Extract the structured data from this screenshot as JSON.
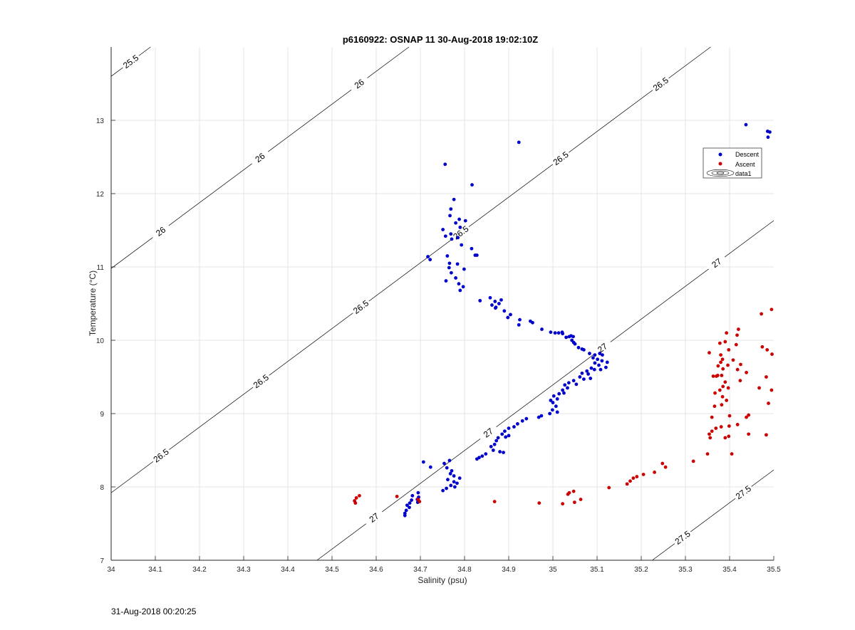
{
  "chart_data": {
    "type": "scatter",
    "title": "p6160922: OSNAP 11 30-Aug-2018 19:02:10Z",
    "xlabel": "Salinity (psu)",
    "ylabel": "Temperature (°C)",
    "xlim": [
      34,
      35.5
    ],
    "ylim": [
      7,
      14
    ],
    "xticks": [
      "34",
      "34.1",
      "34.2",
      "34.3",
      "34.4",
      "34.5",
      "34.6",
      "34.7",
      "34.8",
      "34.9",
      "35",
      "35.1",
      "35.2",
      "35.3",
      "35.4",
      "35.5"
    ],
    "yticks": [
      "7",
      "8",
      "9",
      "10",
      "11",
      "12",
      "13"
    ],
    "grid": true,
    "legend_position": "right",
    "legend": [
      {
        "label": "Descent",
        "color": "#0000cc"
      },
      {
        "label": "Ascent",
        "color": "#cc0000"
      },
      {
        "label": "data1",
        "symbol": "contour"
      }
    ],
    "isopycnals": [
      {
        "value": 25.5,
        "labels": [
          "25.5"
        ]
      },
      {
        "value": 26,
        "labels": [
          "26",
          "26",
          "26"
        ]
      },
      {
        "value": 26.5,
        "labels": [
          "26.5",
          "26.5",
          "26.5",
          "26.5",
          "26.5",
          "26.5"
        ]
      },
      {
        "value": 27,
        "labels": [
          "27",
          "27",
          "27",
          "27"
        ]
      },
      {
        "value": 27.5,
        "labels": [
          "27.5",
          "27.5"
        ]
      }
    ],
    "series": [
      {
        "name": "Descent",
        "color": "#0000cc",
        "points": [
          [
            34.923,
            12.7
          ],
          [
            35.437,
            12.94
          ],
          [
            35.486,
            12.85
          ],
          [
            35.491,
            12.84
          ],
          [
            35.487,
            12.77
          ],
          [
            34.756,
            12.4
          ],
          [
            34.817,
            12.12
          ],
          [
            34.776,
            11.92
          ],
          [
            34.769,
            11.79
          ],
          [
            34.767,
            11.7
          ],
          [
            34.788,
            11.65
          ],
          [
            34.802,
            11.63
          ],
          [
            34.79,
            11.54
          ],
          [
            34.78,
            11.6
          ],
          [
            34.751,
            11.51
          ],
          [
            34.769,
            11.45
          ],
          [
            34.757,
            11.42
          ],
          [
            34.771,
            11.38
          ],
          [
            34.785,
            11.4
          ],
          [
            34.793,
            11.3
          ],
          [
            34.816,
            11.25
          ],
          [
            34.824,
            11.16
          ],
          [
            34.828,
            11.16
          ],
          [
            34.717,
            11.14
          ],
          [
            34.722,
            11.1
          ],
          [
            34.761,
            11.15
          ],
          [
            34.766,
            11.05
          ],
          [
            34.784,
            11.04
          ],
          [
            34.765,
            10.99
          ],
          [
            34.799,
            10.97
          ],
          [
            34.77,
            10.92
          ],
          [
            34.78,
            10.85
          ],
          [
            34.758,
            10.81
          ],
          [
            34.787,
            10.77
          ],
          [
            34.79,
            10.68
          ],
          [
            34.797,
            10.73
          ],
          [
            34.835,
            10.54
          ],
          [
            34.858,
            10.58
          ],
          [
            34.862,
            10.48
          ],
          [
            34.869,
            10.53
          ],
          [
            34.871,
            10.45
          ],
          [
            34.878,
            10.5
          ],
          [
            34.883,
            10.55
          ],
          [
            34.87,
            10.44
          ],
          [
            34.89,
            10.4
          ],
          [
            34.898,
            10.31
          ],
          [
            34.904,
            10.35
          ],
          [
            34.925,
            10.28
          ],
          [
            34.923,
            10.21
          ],
          [
            34.949,
            10.26
          ],
          [
            34.954,
            10.24
          ],
          [
            34.975,
            10.15
          ],
          [
            34.995,
            10.11
          ],
          [
            35.005,
            10.1
          ],
          [
            35.013,
            10.1
          ],
          [
            35.021,
            10.11
          ],
          [
            35.022,
            10.09
          ],
          [
            35.03,
            10.04
          ],
          [
            35.037,
            10.05
          ],
          [
            35.041,
            10.06
          ],
          [
            35.046,
            10.05
          ],
          [
            35.043,
            10.0
          ],
          [
            35.047,
            9.97
          ],
          [
            35.05,
            9.95
          ],
          [
            35.058,
            9.9
          ],
          [
            35.066,
            9.88
          ],
          [
            35.07,
            9.87
          ],
          [
            35.083,
            9.82
          ],
          [
            35.095,
            9.8
          ],
          [
            35.106,
            9.82
          ],
          [
            35.112,
            9.8
          ],
          [
            35.091,
            9.76
          ],
          [
            35.101,
            9.74
          ],
          [
            35.111,
            9.72
          ],
          [
            35.123,
            9.7
          ],
          [
            35.095,
            9.69
          ],
          [
            35.104,
            9.66
          ],
          [
            35.12,
            9.63
          ],
          [
            35.087,
            9.62
          ],
          [
            35.094,
            9.6
          ],
          [
            35.108,
            9.6
          ],
          [
            35.077,
            9.58
          ],
          [
            35.066,
            9.55
          ],
          [
            35.08,
            9.54
          ],
          [
            35.061,
            9.5
          ],
          [
            35.07,
            9.47
          ],
          [
            35.085,
            9.48
          ],
          [
            35.047,
            9.45
          ],
          [
            35.053,
            9.4
          ],
          [
            35.036,
            9.42
          ],
          [
            35.027,
            9.39
          ],
          [
            35.033,
            9.35
          ],
          [
            35.022,
            9.32
          ],
          [
            35.025,
            9.28
          ],
          [
            35.014,
            9.27
          ],
          [
            35.002,
            9.24
          ],
          [
            35.01,
            9.2
          ],
          [
            35.0,
            9.15
          ],
          [
            34.995,
            9.18
          ],
          [
            35.007,
            9.1
          ],
          [
            34.999,
            9.05
          ],
          [
            35.01,
            9.02
          ],
          [
            34.993,
            9.0
          ],
          [
            34.974,
            8.97
          ],
          [
            34.968,
            8.95
          ],
          [
            34.94,
            8.93
          ],
          [
            34.931,
            8.9
          ],
          [
            34.92,
            8.86
          ],
          [
            34.912,
            8.82
          ],
          [
            34.9,
            8.8
          ],
          [
            34.891,
            8.76
          ],
          [
            34.885,
            8.72
          ],
          [
            34.9,
            8.7
          ],
          [
            34.893,
            8.68
          ],
          [
            34.876,
            8.67
          ],
          [
            34.872,
            8.63
          ],
          [
            34.868,
            8.58
          ],
          [
            34.86,
            8.55
          ],
          [
            34.865,
            8.5
          ],
          [
            34.88,
            8.48
          ],
          [
            34.888,
            8.47
          ],
          [
            34.848,
            8.45
          ],
          [
            34.84,
            8.42
          ],
          [
            34.833,
            8.4
          ],
          [
            34.828,
            8.38
          ],
          [
            34.766,
            8.36
          ],
          [
            34.754,
            8.32
          ],
          [
            34.707,
            8.34
          ],
          [
            34.723,
            8.27
          ],
          [
            34.76,
            8.26
          ],
          [
            34.771,
            8.22
          ],
          [
            34.768,
            8.18
          ],
          [
            34.776,
            8.15
          ],
          [
            34.789,
            8.12
          ],
          [
            34.762,
            8.1
          ],
          [
            34.776,
            8.07
          ],
          [
            34.783,
            8.05
          ],
          [
            34.769,
            8.02
          ],
          [
            34.778,
            8.0
          ],
          [
            34.759,
            7.98
          ],
          [
            34.751,
            7.95
          ],
          [
            34.695,
            7.92
          ],
          [
            34.682,
            7.88
          ],
          [
            34.696,
            7.86
          ],
          [
            34.68,
            7.82
          ],
          [
            34.676,
            7.78
          ],
          [
            34.67,
            7.75
          ],
          [
            34.675,
            7.72
          ],
          [
            34.668,
            7.68
          ],
          [
            34.665,
            7.64
          ],
          [
            34.665,
            7.61
          ],
          [
            34.693,
            7.83
          ],
          [
            34.694,
            7.79
          ]
        ]
      },
      {
        "name": "Ascent",
        "color": "#cc0000",
        "points": [
          [
            35.495,
            10.42
          ],
          [
            35.472,
            10.36
          ],
          [
            35.42,
            10.15
          ],
          [
            35.417,
            10.07
          ],
          [
            35.393,
            10.1
          ],
          [
            35.39,
            9.98
          ],
          [
            35.378,
            9.96
          ],
          [
            35.415,
            9.94
          ],
          [
            35.398,
            9.87
          ],
          [
            35.354,
            9.83
          ],
          [
            35.474,
            9.91
          ],
          [
            35.485,
            9.87
          ],
          [
            35.496,
            9.81
          ],
          [
            35.38,
            9.8
          ],
          [
            35.384,
            9.74
          ],
          [
            35.408,
            9.73
          ],
          [
            35.38,
            9.7
          ],
          [
            35.396,
            9.66
          ],
          [
            35.374,
            9.65
          ],
          [
            35.425,
            9.67
          ],
          [
            35.418,
            9.6
          ],
          [
            35.385,
            9.61
          ],
          [
            35.438,
            9.56
          ],
          [
            35.373,
            9.52
          ],
          [
            35.37,
            9.51
          ],
          [
            35.382,
            9.52
          ],
          [
            35.363,
            9.51
          ],
          [
            35.483,
            9.5
          ],
          [
            35.424,
            9.45
          ],
          [
            35.39,
            9.43
          ],
          [
            35.385,
            9.37
          ],
          [
            35.378,
            9.32
          ],
          [
            35.397,
            9.35
          ],
          [
            35.467,
            9.35
          ],
          [
            35.495,
            9.32
          ],
          [
            35.367,
            9.28
          ],
          [
            35.384,
            9.23
          ],
          [
            35.393,
            9.18
          ],
          [
            35.382,
            9.12
          ],
          [
            35.488,
            9.14
          ],
          [
            35.366,
            9.1
          ],
          [
            35.36,
            8.95
          ],
          [
            35.4,
            8.97
          ],
          [
            35.443,
            8.98
          ],
          [
            35.438,
            8.95
          ],
          [
            35.418,
            8.85
          ],
          [
            35.399,
            8.83
          ],
          [
            35.381,
            8.82
          ],
          [
            35.369,
            8.8
          ],
          [
            35.36,
            8.76
          ],
          [
            35.354,
            8.72
          ],
          [
            35.443,
            8.72
          ],
          [
            35.483,
            8.71
          ],
          [
            35.398,
            8.69
          ],
          [
            35.39,
            8.67
          ],
          [
            35.356,
            8.67
          ],
          [
            35.405,
            8.45
          ],
          [
            35.35,
            8.45
          ],
          [
            35.318,
            8.35
          ],
          [
            35.248,
            8.32
          ],
          [
            35.255,
            8.27
          ],
          [
            35.23,
            8.2
          ],
          [
            35.205,
            8.17
          ],
          [
            35.19,
            8.14
          ],
          [
            35.182,
            8.12
          ],
          [
            35.175,
            8.08
          ],
          [
            35.168,
            8.04
          ],
          [
            35.127,
            7.99
          ],
          [
            35.047,
            7.94
          ],
          [
            35.037,
            7.92
          ],
          [
            35.034,
            7.9
          ],
          [
            35.063,
            7.83
          ],
          [
            35.049,
            7.79
          ],
          [
            35.022,
            7.77
          ],
          [
            34.969,
            7.78
          ],
          [
            34.868,
            7.8
          ],
          [
            34.647,
            7.87
          ],
          [
            34.562,
            7.88
          ],
          [
            34.555,
            7.85
          ],
          [
            34.551,
            7.81
          ],
          [
            34.553,
            7.78
          ],
          [
            34.695,
            7.83
          ],
          [
            34.698,
            7.8
          ]
        ]
      }
    ]
  },
  "footer_timestamp": "31-Aug-2018 00:20:25"
}
